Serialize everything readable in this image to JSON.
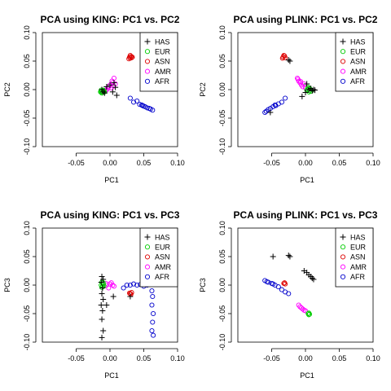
{
  "colors": {
    "HAS": "#000000",
    "EUR": "#00cc00",
    "ASN": "#dd0000",
    "AMR": "#ff00ff",
    "AFR": "#0000cc"
  },
  "chart_data": [
    {
      "type": "scatter",
      "title": "PCA using KING: PC1 vs. PC2",
      "xlabel": "PC1",
      "ylabel": "PC2",
      "xlim": [
        -0.1,
        0.1
      ],
      "ylim": [
        -0.1,
        0.1
      ],
      "xticks": [
        "-0.05",
        "0.00",
        "0.05",
        "0.10"
      ],
      "yticks": [
        "-0.10",
        "-0.05",
        "0.00",
        "0.05",
        "0.10"
      ],
      "legend_position": "top-right",
      "series": [
        {
          "name": "HAS",
          "marker": "plus",
          "points": [
            [
              -0.012,
              0.0
            ],
            [
              -0.01,
              -0.004
            ],
            [
              -0.005,
              0.005
            ],
            [
              0.0,
              0.008
            ],
            [
              0.004,
              -0.004
            ],
            [
              0.006,
              0.012
            ],
            [
              0.01,
              -0.01
            ],
            [
              -0.008,
              -0.006
            ],
            [
              0.008,
              0.004
            ]
          ]
        },
        {
          "name": "EUR",
          "marker": "circle",
          "points": [
            [
              -0.012,
              -0.003
            ],
            [
              -0.013,
              -0.001
            ],
            [
              -0.011,
              -0.005
            ],
            [
              -0.01,
              -0.002
            ],
            [
              -0.014,
              -0.004
            ],
            [
              -0.009,
              -0.003
            ],
            [
              -0.012,
              -0.006
            ],
            [
              -0.01,
              -0.001
            ],
            [
              -0.013,
              -0.003
            ],
            [
              -0.008,
              -0.004
            ]
          ]
        },
        {
          "name": "ASN",
          "marker": "circle",
          "points": [
            [
              0.03,
              0.055
            ],
            [
              0.031,
              0.058
            ],
            [
              0.029,
              0.057
            ],
            [
              0.032,
              0.056
            ],
            [
              0.03,
              0.06
            ],
            [
              0.028,
              0.054
            ],
            [
              0.033,
              0.057
            ]
          ]
        },
        {
          "name": "AMR",
          "marker": "circle",
          "points": [
            [
              -0.005,
              0.0
            ],
            [
              -0.002,
              0.005
            ],
            [
              0.0,
              0.008
            ],
            [
              0.004,
              0.012
            ],
            [
              0.006,
              0.02
            ],
            [
              0.008,
              0.01
            ],
            [
              -0.003,
              0.002
            ],
            [
              0.002,
              0.003
            ],
            [
              0.005,
              0.006
            ],
            [
              0.003,
              0.015
            ],
            [
              -0.006,
              -0.002
            ]
          ]
        },
        {
          "name": "AFR",
          "marker": "circle",
          "points": [
            [
              0.03,
              -0.015
            ],
            [
              0.035,
              -0.022
            ],
            [
              0.04,
              -0.02
            ],
            [
              0.044,
              -0.026
            ],
            [
              0.048,
              -0.028
            ],
            [
              0.052,
              -0.03
            ],
            [
              0.055,
              -0.032
            ],
            [
              0.058,
              -0.033
            ],
            [
              0.06,
              -0.034
            ],
            [
              0.063,
              -0.036
            ],
            [
              0.047,
              -0.027
            ],
            [
              0.05,
              -0.029
            ]
          ]
        }
      ]
    },
    {
      "type": "scatter",
      "title": "PCA using PLINK: PC1 vs. PC2",
      "xlabel": "PC1",
      "ylabel": "PC2",
      "xlim": [
        -0.1,
        0.1
      ],
      "ylim": [
        -0.1,
        0.1
      ],
      "xticks": [
        "-0.05",
        "0.00",
        "0.05",
        "0.10"
      ],
      "yticks": [
        "-0.10",
        "-0.05",
        "0.00",
        "0.05",
        "0.10"
      ],
      "legend_position": "top-right",
      "series": [
        {
          "name": "HAS",
          "marker": "plus",
          "points": [
            [
              -0.025,
              0.052
            ],
            [
              -0.023,
              0.05
            ],
            [
              0.005,
              0.0
            ],
            [
              0.008,
              0.002
            ],
            [
              0.01,
              -0.002
            ],
            [
              0.012,
              0.0
            ],
            [
              0.014,
              -0.001
            ],
            [
              0.0,
              -0.005
            ],
            [
              0.002,
              0.01
            ],
            [
              -0.005,
              -0.012
            ],
            [
              -0.052,
              -0.04
            ]
          ]
        },
        {
          "name": "EUR",
          "marker": "circle",
          "points": [
            [
              0.003,
              0.0
            ],
            [
              0.005,
              0.002
            ],
            [
              0.006,
              -0.002
            ],
            [
              0.004,
              0.004
            ],
            [
              0.007,
              0.001
            ],
            [
              0.002,
              -0.001
            ],
            [
              0.008,
              -0.003
            ],
            [
              0.005,
              -0.004
            ]
          ]
        },
        {
          "name": "ASN",
          "marker": "circle",
          "points": [
            [
              -0.033,
              0.057
            ],
            [
              -0.031,
              0.059
            ],
            [
              -0.034,
              0.055
            ],
            [
              -0.03,
              0.056
            ],
            [
              -0.032,
              0.06
            ]
          ]
        },
        {
          "name": "AMR",
          "marker": "circle",
          "points": [
            [
              -0.012,
              0.02
            ],
            [
              -0.01,
              0.015
            ],
            [
              -0.008,
              0.012
            ],
            [
              -0.006,
              0.008
            ],
            [
              -0.004,
              0.005
            ],
            [
              -0.002,
              0.01
            ],
            [
              0.0,
              0.003
            ],
            [
              -0.011,
              0.018
            ],
            [
              -0.007,
              0.014
            ]
          ]
        },
        {
          "name": "AFR",
          "marker": "circle",
          "points": [
            [
              -0.03,
              -0.015
            ],
            [
              -0.035,
              -0.022
            ],
            [
              -0.04,
              -0.025
            ],
            [
              -0.044,
              -0.028
            ],
            [
              -0.048,
              -0.03
            ],
            [
              -0.052,
              -0.033
            ],
            [
              -0.055,
              -0.035
            ],
            [
              -0.058,
              -0.038
            ],
            [
              -0.06,
              -0.04
            ],
            [
              -0.045,
              -0.027
            ]
          ]
        }
      ]
    },
    {
      "type": "scatter",
      "title": "PCA using KING: PC1 vs. PC3",
      "xlabel": "PC1",
      "ylabel": "PC3",
      "xlim": [
        -0.1,
        0.1
      ],
      "ylim": [
        -0.1,
        0.1
      ],
      "xticks": [
        "-0.05",
        "0.00",
        "0.05",
        "0.10"
      ],
      "yticks": [
        "-0.10",
        "-0.05",
        "0.00",
        "0.05",
        "0.10"
      ],
      "legend_position": "top-right",
      "series": [
        {
          "name": "HAS",
          "marker": "plus",
          "points": [
            [
              -0.012,
              0.015
            ],
            [
              -0.01,
              0.01
            ],
            [
              -0.013,
              0.005
            ],
            [
              -0.011,
              -0.005
            ],
            [
              -0.012,
              -0.015
            ],
            [
              -0.01,
              -0.025
            ],
            [
              -0.013,
              -0.035
            ],
            [
              -0.011,
              -0.045
            ],
            [
              -0.012,
              -0.06
            ],
            [
              -0.01,
              -0.08
            ],
            [
              -0.012,
              -0.092
            ],
            [
              0.005,
              -0.02
            ],
            [
              0.03,
              -0.02
            ],
            [
              -0.005,
              -0.035
            ]
          ]
        },
        {
          "name": "EUR",
          "marker": "circle",
          "points": [
            [
              -0.012,
              0.005
            ],
            [
              -0.01,
              0.002
            ],
            [
              -0.013,
              0.0
            ],
            [
              -0.011,
              -0.002
            ],
            [
              -0.012,
              -0.004
            ],
            [
              -0.01,
              0.004
            ],
            [
              -0.009,
              -0.001
            ]
          ]
        },
        {
          "name": "ASN",
          "marker": "circle",
          "points": [
            [
              0.03,
              -0.015
            ],
            [
              0.032,
              -0.013
            ],
            [
              0.029,
              -0.014
            ],
            [
              0.031,
              -0.016
            ]
          ]
        },
        {
          "name": "AMR",
          "marker": "circle",
          "points": [
            [
              -0.005,
              0.0
            ],
            [
              0.0,
              0.002
            ],
            [
              0.004,
              0.0
            ],
            [
              -0.002,
              -0.005
            ],
            [
              0.006,
              -0.002
            ],
            [
              0.002,
              0.004
            ],
            [
              -0.006,
              0.003
            ]
          ]
        },
        {
          "name": "AFR",
          "marker": "circle",
          "points": [
            [
              0.03,
              0.0
            ],
            [
              0.035,
              0.002
            ],
            [
              0.04,
              0.0
            ],
            [
              0.045,
              0.001
            ],
            [
              0.05,
              -0.002
            ],
            [
              0.055,
              0.0
            ],
            [
              0.06,
              0.002
            ],
            [
              0.062,
              -0.01
            ],
            [
              0.063,
              -0.02
            ],
            [
              0.062,
              -0.035
            ],
            [
              0.064,
              -0.05
            ],
            [
              0.063,
              -0.065
            ],
            [
              0.062,
              -0.08
            ],
            [
              0.064,
              -0.088
            ],
            [
              0.02,
              -0.005
            ],
            [
              0.025,
              0.0
            ]
          ]
        }
      ]
    },
    {
      "type": "scatter",
      "title": "PCA using PLINK: PC1 vs. PC3",
      "xlabel": "PC1",
      "ylabel": "PC3",
      "xlim": [
        -0.1,
        0.1
      ],
      "ylim": [
        -0.1,
        0.1
      ],
      "xticks": [
        "-0.05",
        "0.00",
        "0.05",
        "0.10"
      ],
      "yticks": [
        "-0.10",
        "-0.05",
        "0.00",
        "0.05",
        "0.10"
      ],
      "legend_position": "top-right",
      "series": [
        {
          "name": "HAS",
          "marker": "plus",
          "points": [
            [
              -0.048,
              0.05
            ],
            [
              -0.025,
              0.052
            ],
            [
              -0.023,
              0.05
            ],
            [
              -0.002,
              0.025
            ],
            [
              0.002,
              0.022
            ],
            [
              0.005,
              0.018
            ],
            [
              0.008,
              0.015
            ],
            [
              0.01,
              0.012
            ],
            [
              0.012,
              0.01
            ]
          ]
        },
        {
          "name": "EUR",
          "marker": "circle",
          "points": [
            [
              0.004,
              -0.05
            ],
            [
              0.005,
              -0.052
            ],
            [
              0.006,
              -0.051
            ],
            [
              0.005,
              -0.049
            ]
          ]
        },
        {
          "name": "ASN",
          "marker": "circle",
          "points": [
            [
              -0.032,
              0.003
            ],
            [
              -0.03,
              0.002
            ],
            [
              -0.031,
              0.004
            ]
          ]
        },
        {
          "name": "AMR",
          "marker": "circle",
          "points": [
            [
              -0.01,
              -0.035
            ],
            [
              -0.008,
              -0.038
            ],
            [
              -0.006,
              -0.04
            ],
            [
              -0.004,
              -0.042
            ],
            [
              -0.002,
              -0.044
            ],
            [
              0.0,
              -0.045
            ]
          ]
        },
        {
          "name": "AFR",
          "marker": "circle",
          "points": [
            [
              -0.06,
              0.008
            ],
            [
              -0.055,
              0.005
            ],
            [
              -0.05,
              0.003
            ],
            [
              -0.045,
              0.0
            ],
            [
              -0.04,
              -0.003
            ],
            [
              -0.035,
              -0.008
            ],
            [
              -0.03,
              -0.012
            ],
            [
              -0.025,
              -0.015
            ],
            [
              -0.057,
              0.006
            ],
            [
              -0.048,
              0.002
            ]
          ]
        }
      ]
    }
  ]
}
